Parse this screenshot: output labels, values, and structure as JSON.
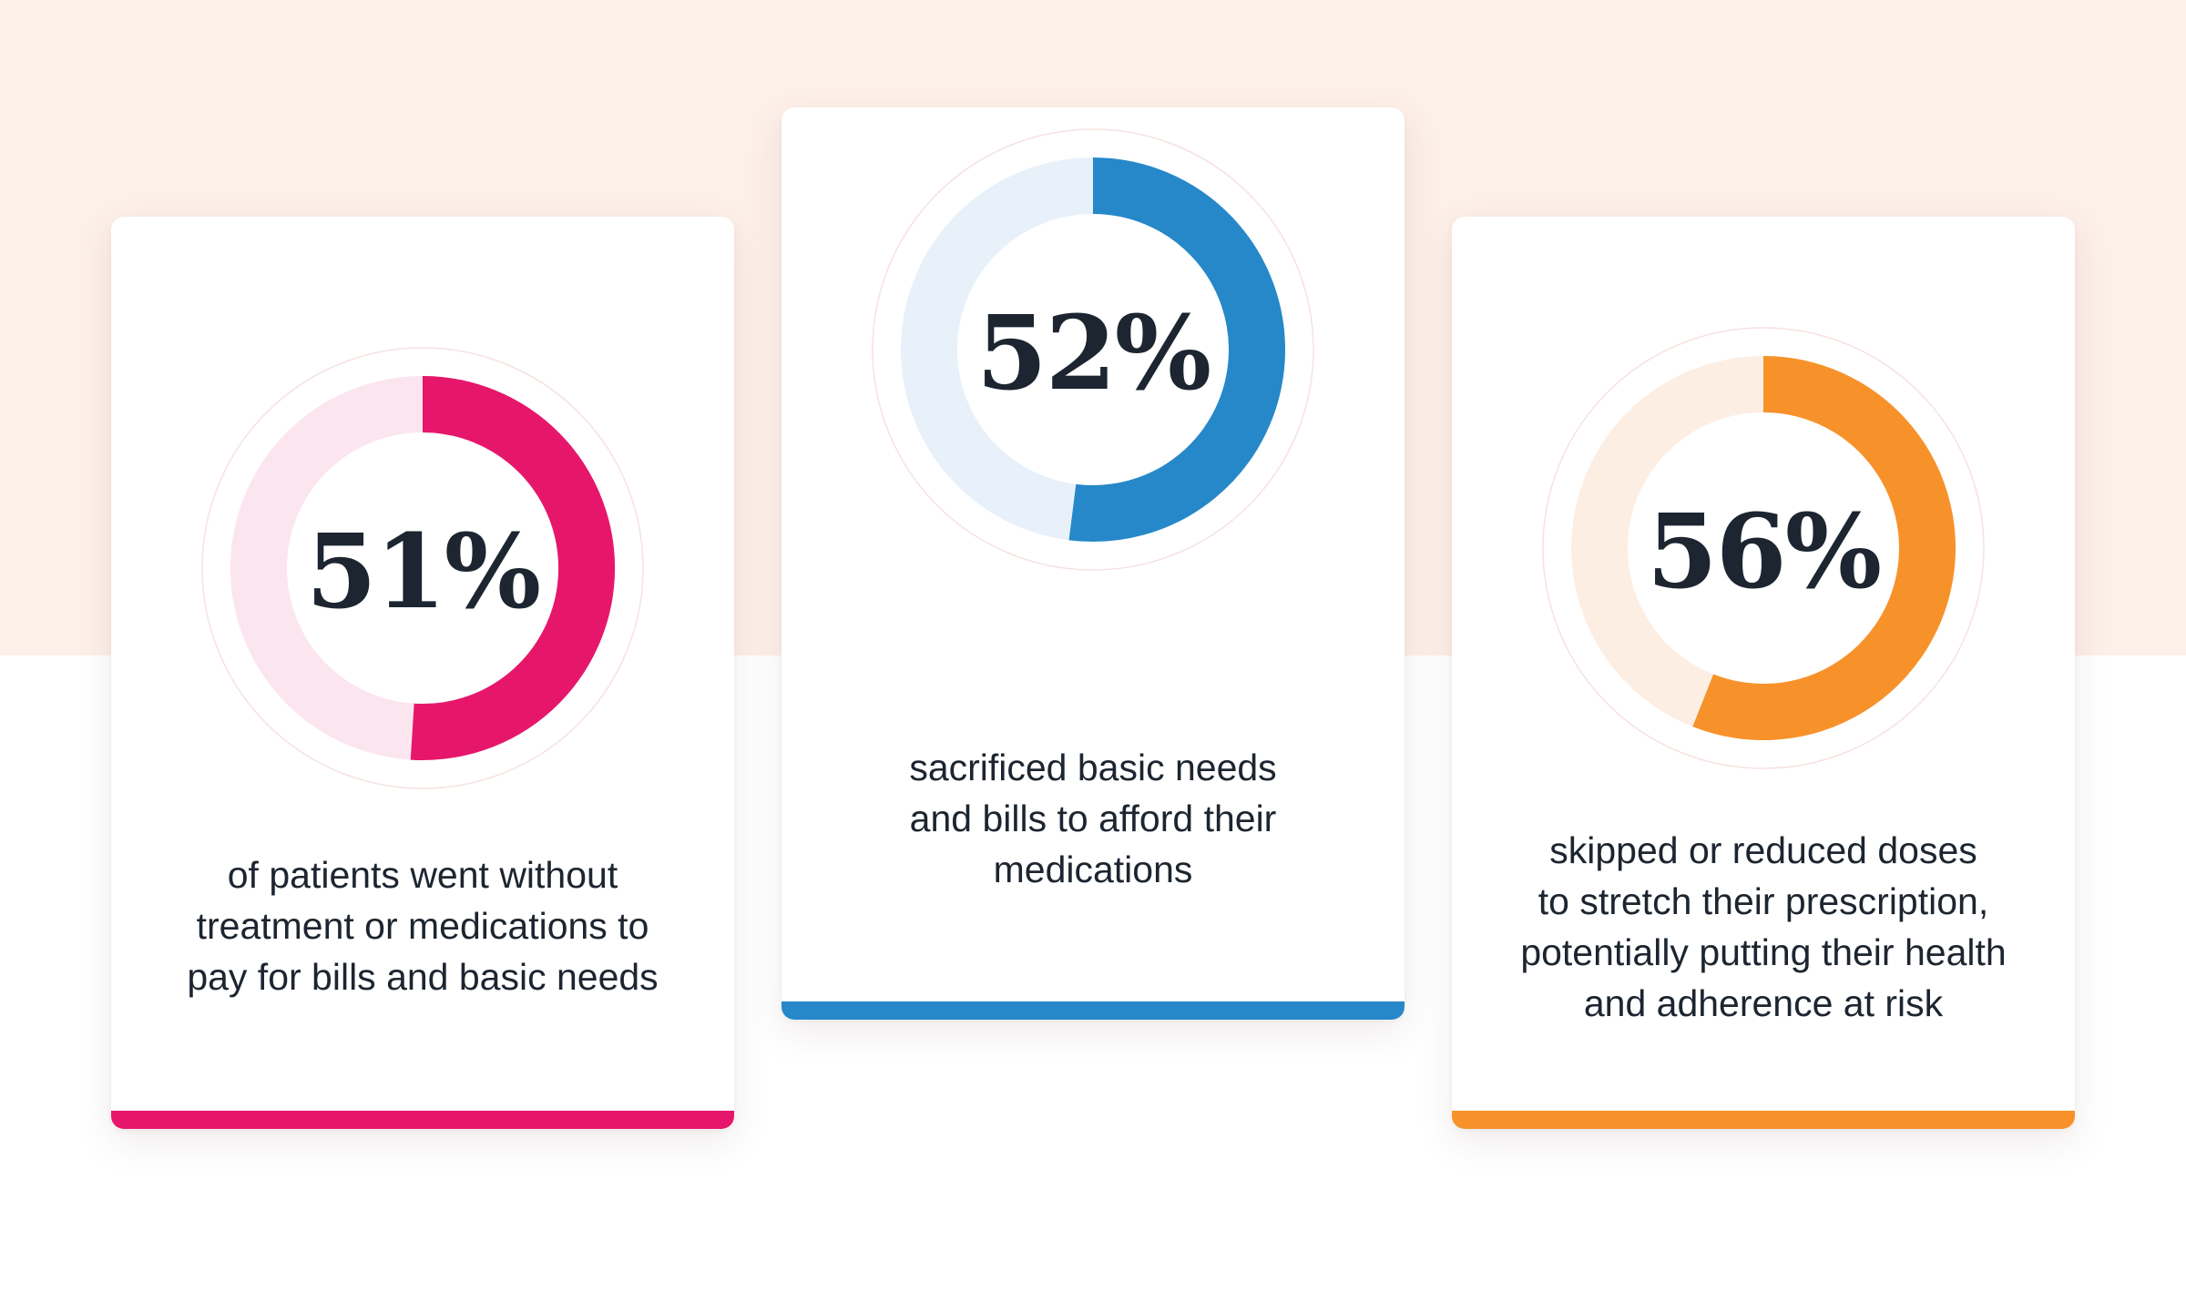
{
  "chart_data": [
    {
      "type": "pie",
      "value": 51,
      "label": "51%",
      "caption": "of patients went without\ntreatment or medications to\npay for bills and basic needs",
      "accent_color": "#e6176b",
      "track_color": "#fbe6ef"
    },
    {
      "type": "pie",
      "value": 52,
      "label": "52%",
      "caption": "sacrificed basic needs\nand bills to afford their\nmedications",
      "accent_color": "#2688c9",
      "track_color": "#e8f1fa"
    },
    {
      "type": "pie",
      "value": 56,
      "label": "56%",
      "caption": "skipped or reduced doses\nto stretch their prescription,\npotentially putting their health\nand adherence at risk",
      "accent_color": "#f7922b",
      "track_color": "#fdeee4"
    }
  ]
}
